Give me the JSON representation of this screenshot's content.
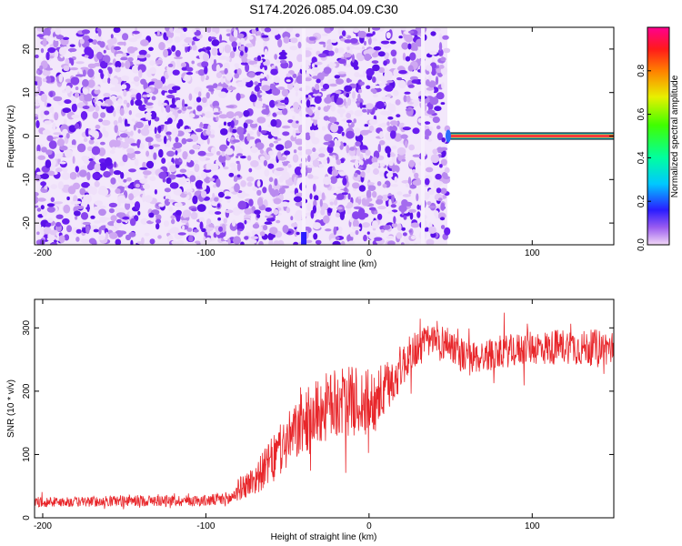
{
  "title": "S174.2026.085.04.09.C30",
  "chart_data": [
    {
      "type": "heatmap",
      "xlabel": "Height of straight line (km)",
      "ylabel": "Frequency (Hz)",
      "xlim": [
        -205,
        150
      ],
      "ylim": [
        -25,
        25
      ],
      "xticks": [
        -200,
        -100,
        0,
        100
      ],
      "yticks": [
        -20,
        -10,
        0,
        10,
        20
      ],
      "noise_region_x": [
        -205,
        48
      ],
      "gap_columns_x": [
        -40,
        33
      ],
      "signal_line": {
        "x_start": 48,
        "x_end": 150,
        "frequency": 0
      },
      "colorbar": {
        "label": "Normalized spectral amplitude",
        "range": [
          0,
          1
        ],
        "ticks": [
          0.0,
          0.2,
          0.4,
          0.6,
          0.8
        ],
        "tick_labels": [
          "0.0",
          "0.2",
          "0.4",
          "0.6",
          "0.8"
        ]
      }
    },
    {
      "type": "line",
      "xlabel": "Height of straight line (km)",
      "ylabel": "SNR (10 * v/v)",
      "xlim": [
        -205,
        150
      ],
      "ylim": [
        0,
        345
      ],
      "xticks": [
        -200,
        -100,
        0,
        100
      ],
      "yticks": [
        0,
        100,
        200,
        300
      ],
      "color": "#e8262a",
      "series": [
        {
          "name": "SNR",
          "x": [
            -205,
            -180,
            -150,
            -120,
            -100,
            -85,
            -80,
            -70,
            -60,
            -50,
            -40,
            -30,
            -20,
            -10,
            0,
            10,
            20,
            30,
            40,
            50,
            60,
            70,
            80,
            90,
            100,
            110,
            120,
            130,
            140,
            150
          ],
          "values": [
            25,
            25,
            27,
            27,
            27,
            30,
            45,
            60,
            90,
            120,
            150,
            170,
            180,
            185,
            180,
            200,
            240,
            270,
            280,
            275,
            250,
            255,
            262,
            265,
            270,
            268,
            272,
            268,
            270,
            268
          ],
          "amplitude": [
            8,
            8,
            9,
            9,
            9,
            12,
            18,
            25,
            35,
            45,
            50,
            55,
            55,
            55,
            55,
            45,
            35,
            30,
            28,
            28,
            28,
            26,
            26,
            26,
            28,
            28,
            28,
            28,
            28,
            28
          ]
        }
      ]
    }
  ]
}
